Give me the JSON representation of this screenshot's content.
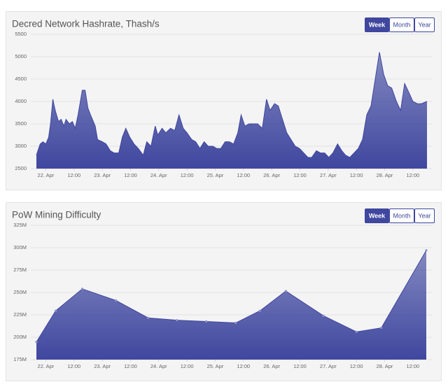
{
  "chart_data": [
    {
      "type": "area",
      "title": "Decred Network Hashrate, Thash/s",
      "buttons": [
        "Week",
        "Month",
        "Year"
      ],
      "selected_button": 0,
      "color": "#3f479f",
      "grid": true,
      "markers": false,
      "x": [
        -4,
        -2.4,
        -1.2,
        0,
        1.2,
        2,
        3,
        4,
        5.4,
        6.5,
        7.7,
        8.6,
        10,
        11.3,
        12.5,
        13.7,
        15.5,
        16.7,
        17.9,
        19,
        21,
        22,
        24,
        25.6,
        27.4,
        29,
        31,
        32.5,
        34,
        35.7,
        37.5,
        39.3,
        41.4,
        42.9,
        44.7,
        46.5,
        47.6,
        49.4,
        51,
        53,
        54.8,
        56.6,
        58.4,
        60,
        62,
        63.7,
        65.5,
        67.3,
        69,
        71,
        72.6,
        74.4,
        76.2,
        78,
        79.8,
        81.6,
        83,
        84.6,
        86.4,
        88,
        90,
        92,
        93.8,
        95.3,
        97.2,
        98.8,
        100.6,
        102.4,
        104.2,
        106,
        107.8,
        109.6,
        111.4,
        113,
        115,
        116.7,
        118.5,
        120.3,
        122,
        124,
        125.8,
        127.4,
        129.2,
        131,
        132.8,
        134.6,
        136.4,
        138.2,
        140,
        141.8,
        143.6,
        145.3,
        147,
        149,
        150.8,
        152.5,
        154.3,
        156,
        157.9,
        159.6,
        162
      ],
      "values": [
        2800,
        3050,
        3100,
        3050,
        3200,
        3500,
        4050,
        3800,
        3550,
        3600,
        3450,
        3600,
        3500,
        3550,
        3400,
        3700,
        4250,
        4250,
        3850,
        3700,
        3450,
        3150,
        3100,
        3050,
        2900,
        2850,
        2850,
        3200,
        3400,
        3200,
        3050,
        2950,
        2800,
        3100,
        3000,
        3450,
        3250,
        3400,
        3300,
        3400,
        3350,
        3700,
        3400,
        3300,
        3150,
        3100,
        2950,
        3100,
        3000,
        3000,
        2950,
        2950,
        3100,
        3100,
        3050,
        3300,
        3700,
        3450,
        3500,
        3500,
        3500,
        3400,
        4050,
        3800,
        3950,
        3900,
        3600,
        3300,
        3150,
        3000,
        2950,
        2850,
        2750,
        2750,
        2900,
        2850,
        2850,
        2750,
        2850,
        3050,
        2900,
        2800,
        2750,
        2850,
        2950,
        3150,
        3700,
        3900,
        4500,
        5100,
        4600,
        4350,
        4300,
        4000,
        3800,
        4400,
        4200,
        4000,
        3950,
        3950,
        4000
      ],
      "xlim": [
        -4,
        162
      ],
      "xticks": [
        {
          "value": 0,
          "label": "22. Apr"
        },
        {
          "value": 12,
          "label": "12:00"
        },
        {
          "value": 24,
          "label": "23. Apr"
        },
        {
          "value": 36,
          "label": "12:00"
        },
        {
          "value": 48,
          "label": "24. Apr"
        },
        {
          "value": 60,
          "label": "12:00"
        },
        {
          "value": 72,
          "label": "25. Apr"
        },
        {
          "value": 84,
          "label": "12:00"
        },
        {
          "value": 96,
          "label": "26. Apr"
        },
        {
          "value": 108,
          "label": "12:00"
        },
        {
          "value": 120,
          "label": "27. Apr"
        },
        {
          "value": 132,
          "label": "12:00"
        },
        {
          "value": 144,
          "label": "28. Apr"
        },
        {
          "value": 156,
          "label": "12:00"
        }
      ],
      "ylim": [
        2500,
        5500
      ],
      "yticks": [
        2500,
        3000,
        3500,
        4000,
        4500,
        5000,
        5500
      ]
    },
    {
      "type": "area",
      "title": "PoW Mining Difficulty",
      "buttons": [
        "Week",
        "Month",
        "Year"
      ],
      "selected_button": 0,
      "color": "#3f479f",
      "grid": true,
      "markers": true,
      "x": [
        -4,
        4.2,
        15.5,
        29.8,
        43.5,
        55.7,
        68.2,
        80.7,
        91,
        102,
        118,
        132,
        142.6,
        161.7
      ],
      "values": [
        194700000,
        229500000,
        254000000,
        241000000,
        221600000,
        219000000,
        217600000,
        216000000,
        229500000,
        251600000,
        224000000,
        206000000,
        210500000,
        297000000
      ],
      "xlim": [
        -4,
        162
      ],
      "xticks": [
        {
          "value": 0,
          "label": "22. Apr"
        },
        {
          "value": 12,
          "label": "12:00"
        },
        {
          "value": 24,
          "label": "23. Apr"
        },
        {
          "value": 36,
          "label": "12:00"
        },
        {
          "value": 48,
          "label": "24. Apr"
        },
        {
          "value": 60,
          "label": "12:00"
        },
        {
          "value": 72,
          "label": "25. Apr"
        },
        {
          "value": 84,
          "label": "12:00"
        },
        {
          "value": 96,
          "label": "26. Apr"
        },
        {
          "value": 108,
          "label": "12:00"
        },
        {
          "value": 120,
          "label": "27. Apr"
        },
        {
          "value": 132,
          "label": "12:00"
        },
        {
          "value": 144,
          "label": "28. Apr"
        },
        {
          "value": 156,
          "label": "12:00"
        }
      ],
      "ylim": [
        175000000,
        325000000
      ],
      "yticks": [
        {
          "value": 175000000,
          "label": "175M"
        },
        {
          "value": 200000000,
          "label": "200M"
        },
        {
          "value": 225000000,
          "label": "225M"
        },
        {
          "value": 250000000,
          "label": "250M"
        },
        {
          "value": 275000000,
          "label": "275M"
        },
        {
          "value": 300000000,
          "label": "300M"
        },
        {
          "value": 325000000,
          "label": "325M"
        }
      ]
    }
  ]
}
